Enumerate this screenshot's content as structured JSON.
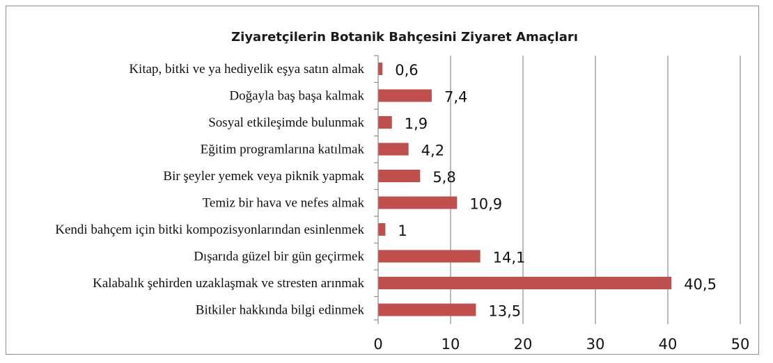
{
  "chart_data": {
    "type": "bar",
    "orientation": "horizontal",
    "title": "Ziyaretçilerin Botanik Bahçesini Ziyaret Amaçları",
    "xlabel": "",
    "ylabel": "",
    "xlim": [
      0,
      50
    ],
    "xticks": [
      0,
      10,
      20,
      30,
      40,
      50
    ],
    "grid": "vertical",
    "legend": "none",
    "bar_color": "#c0504d",
    "categories": [
      "Kitap, bitki ve ya hediyelik eşya satın almak",
      "Doğayla baş başa kalmak",
      "Sosyal etkileşimde bulunmak",
      "Eğitim programlarına katılmak",
      "Bir şeyler yemek veya piknik yapmak",
      "Temiz bir hava ve nefes almak",
      "Kendi bahçem için bitki kompozisyonlarından esinlenmek",
      "Dışarıda güzel bir gün geçirmek",
      "Kalabalık şehirden uzaklaşmak ve stresten arınmak",
      "Bitkiler hakkında bilgi edinmek"
    ],
    "values": [
      0.6,
      7.4,
      1.9,
      4.2,
      5.8,
      10.9,
      1,
      14.1,
      40.5,
      13.5
    ],
    "value_labels": [
      "0,6",
      "7,4",
      "1,9",
      "4,2",
      "5,8",
      "10,9",
      "1",
      "14,1",
      "40,5",
      "13,5"
    ]
  }
}
